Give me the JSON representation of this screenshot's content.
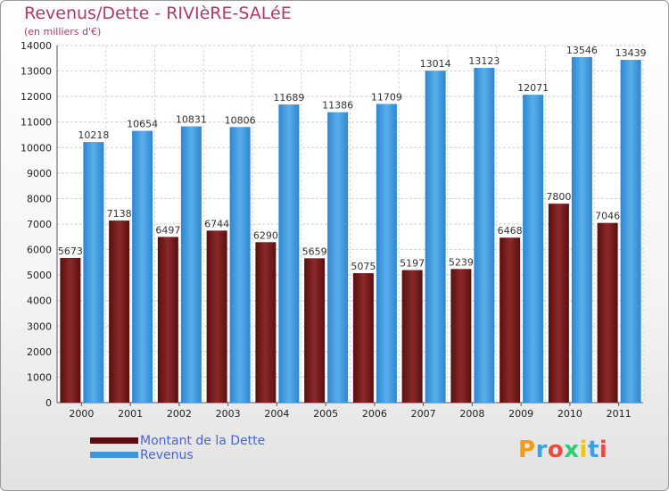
{
  "chart_data": {
    "type": "bar",
    "title": "Revenus/Dette - RIVIèRE-SALéE",
    "subtitle": "(en milliers d'€)",
    "categories": [
      "2000",
      "2001",
      "2002",
      "2003",
      "2004",
      "2005",
      "2006",
      "2007",
      "2008",
      "2009",
      "2010",
      "2011"
    ],
    "series": [
      {
        "name": "Montant de la Dette",
        "color": "#7a1e1e",
        "values": [
          5673,
          7138,
          6497,
          6744,
          6290,
          5659,
          5075,
          5197,
          5239,
          6468,
          7800,
          7046
        ]
      },
      {
        "name": "Revenus",
        "color": "#3d97dc",
        "values": [
          10218,
          10654,
          10831,
          10806,
          11689,
          11386,
          11709,
          13014,
          13123,
          12071,
          13546,
          13439
        ]
      }
    ],
    "ylim": [
      0,
      14000
    ],
    "yticks": [
      0,
      1000,
      2000,
      3000,
      4000,
      5000,
      6000,
      7000,
      8000,
      9000,
      10000,
      11000,
      12000,
      13000,
      14000
    ],
    "grid": true,
    "legend_position": "bottom-left"
  },
  "logo": {
    "text": "Proxiti"
  }
}
